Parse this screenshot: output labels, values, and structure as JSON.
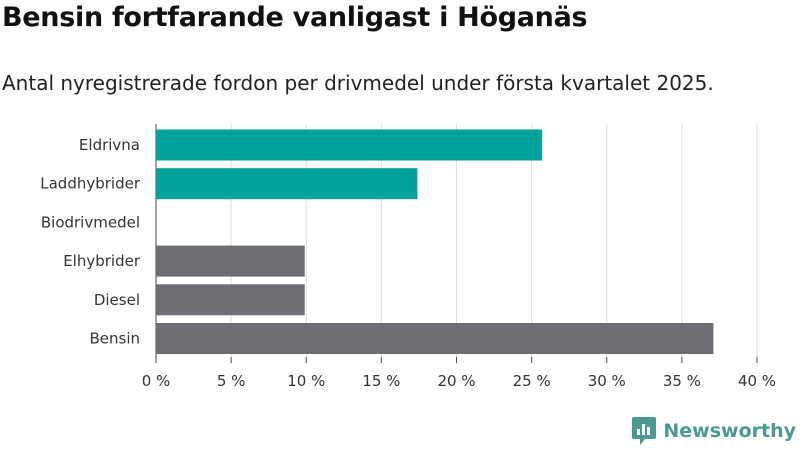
{
  "title": "Bensin fortfarande vanligast i Höganäs",
  "subtitle": "Antal nyregistrerade fordon per drivmedel under första kvartalet 2025.",
  "logo": {
    "text": "Newsworthy",
    "icon": "newsworthy-chart-bubble-icon",
    "color": "#4a9a94"
  },
  "chart_data": {
    "type": "bar",
    "orientation": "horizontal",
    "categories": [
      "Eldrivna",
      "Laddhybrider",
      "Biodrivmedel",
      "Elhybrider",
      "Diesel",
      "Bensin"
    ],
    "values": [
      25.7,
      17.4,
      0,
      9.9,
      9.9,
      37.1
    ],
    "colors": [
      "#00a39a",
      "#00a39a",
      "#00a39a",
      "#6e6d73",
      "#6e6d73",
      "#6e6d73"
    ],
    "xlim": [
      0,
      40
    ],
    "xticks": [
      {
        "value": 0,
        "label": "0 %"
      },
      {
        "value": 5,
        "label": "5 %"
      },
      {
        "value": 10,
        "label": "10 %"
      },
      {
        "value": 15,
        "label": "15 %"
      },
      {
        "value": 20,
        "label": "20 %"
      },
      {
        "value": 25,
        "label": "25 %"
      },
      {
        "value": 30,
        "label": "30 %"
      },
      {
        "value": 35,
        "label": "35 %"
      },
      {
        "value": 40,
        "label": "40 %"
      }
    ],
    "grid": true,
    "xlabel": "",
    "ylabel": ""
  }
}
